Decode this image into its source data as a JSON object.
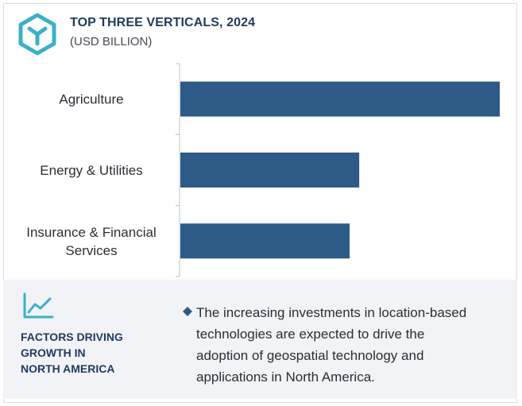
{
  "header": {
    "title": "TOP THREE VERTICALS, 2024",
    "subtitle": "(USD BILLION)",
    "icon": "cube-logo-icon"
  },
  "colors": {
    "bar": "#2e5a87",
    "accent": "#3ab0c8",
    "title": "#1f3a5f",
    "panel": "#f1f3f6"
  },
  "chart_data": {
    "type": "bar",
    "orientation": "horizontal",
    "title": "TOP THREE VERTICALS, 2024",
    "subtitle": "(USD BILLION)",
    "categories": [
      [
        "Agriculture"
      ],
      [
        "Energy & Utilities"
      ],
      [
        "Insurance & Financial",
        "Services"
      ]
    ],
    "values": [
      1.0,
      0.56,
      0.53
    ],
    "value_axis": "relative (no axis values shown)",
    "grid": false
  },
  "factors": {
    "icon": "trend-chart-icon",
    "heading_lines": [
      "FACTORS DRIVING",
      "GROWTH IN",
      "NORTH AMERICA"
    ],
    "bullet_icon": "diamond-bullet-icon",
    "text_lines": [
      "The increasing investments in location-based",
      "technologies are expected to drive the",
      "adoption of geospatial technology and",
      "applications in North America."
    ]
  }
}
